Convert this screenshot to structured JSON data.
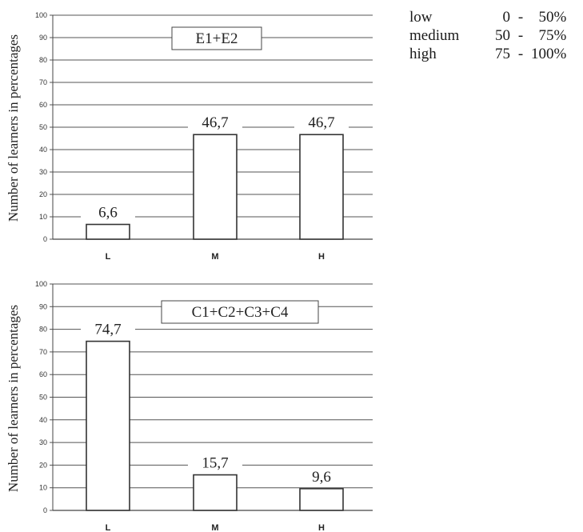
{
  "legend": {
    "rows": [
      {
        "label": "low",
        "from": "0",
        "sep": "-",
        "to": "50%"
      },
      {
        "label": "medium",
        "from": "50",
        "sep": "-",
        "to": "75%"
      },
      {
        "label": "high",
        "from": "75",
        "sep": "-",
        "to": "100%"
      }
    ]
  },
  "chart_data": [
    {
      "type": "bar",
      "title": "E1+E2",
      "ylabel": "Number of learners in percentages",
      "categories": [
        "L",
        "M",
        "H"
      ],
      "values": [
        6.6,
        46.7,
        46.7
      ],
      "value_labels": [
        "6,6",
        "46,7",
        "46,7"
      ],
      "ylim": [
        0,
        100
      ],
      "yticks": [
        "0",
        "10",
        "20",
        "30",
        "40",
        "50",
        "60",
        "70",
        "80",
        "90",
        "100"
      ],
      "grid": true
    },
    {
      "type": "bar",
      "title": "C1+C2+C3+C4",
      "ylabel": "Number of learners in percentages",
      "categories": [
        "L",
        "M",
        "H"
      ],
      "values": [
        74.7,
        15.7,
        9.6
      ],
      "value_labels": [
        "74,7",
        "15,7",
        "9,6"
      ],
      "ylim": [
        0,
        100
      ],
      "yticks": [
        "0",
        "10",
        "20",
        "30",
        "40",
        "50",
        "60",
        "70",
        "80",
        "90",
        "100"
      ],
      "grid": true
    }
  ]
}
